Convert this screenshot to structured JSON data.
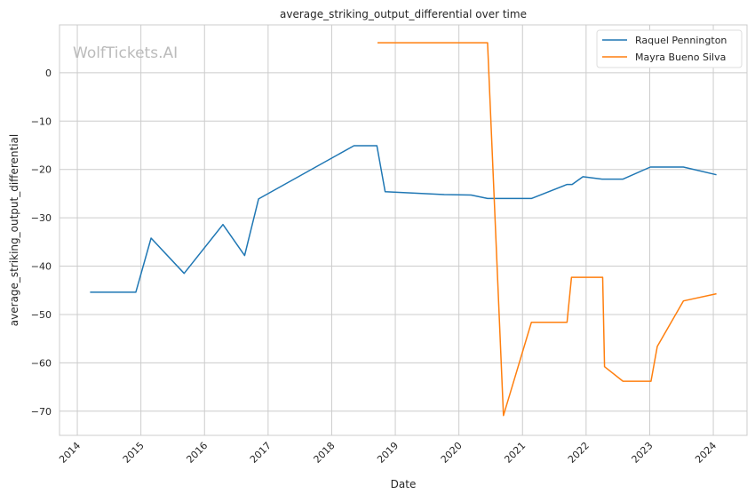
{
  "watermark": "WolfTickets.AI",
  "chart_data": {
    "type": "line",
    "title": "average_striking_output_differential over time",
    "xlabel": "Date",
    "ylabel": "average_striking_output_differential",
    "xlim": [
      2013.72,
      2024.53
    ],
    "ylim": [
      -75,
      9.9
    ],
    "xticks": [
      2014,
      2015,
      2016,
      2017,
      2018,
      2019,
      2020,
      2021,
      2022,
      2023,
      2024
    ],
    "yticks": [
      0,
      -10,
      -20,
      -30,
      -40,
      -50,
      -60,
      -70
    ],
    "grid": true,
    "legend_position": "top-right",
    "series": [
      {
        "name": "Raquel Pennington",
        "color": "#1f77b4",
        "x": [
          2014.2,
          2014.92,
          2015.16,
          2015.68,
          2016.29,
          2016.63,
          2016.85,
          2018.35,
          2018.71,
          2018.84,
          2019.77,
          2020.19,
          2020.45,
          2021.14,
          2021.7,
          2021.78,
          2021.95,
          2022.25,
          2022.58,
          2023.01,
          2023.53,
          2024.05
        ],
        "y": [
          -45.4,
          -45.4,
          -34.2,
          -41.5,
          -31.4,
          -37.8,
          -26.1,
          -15.1,
          -15.1,
          -24.6,
          -25.2,
          -25.3,
          -26.0,
          -26.0,
          -23.1,
          -23.1,
          -21.5,
          -22.0,
          -22.0,
          -19.5,
          -19.5,
          -21.1
        ]
      },
      {
        "name": "Mayra Bueno Silva",
        "color": "#ff7f0e",
        "x": [
          2018.72,
          2020.45,
          2020.7,
          2021.14,
          2021.7,
          2021.77,
          2022.26,
          2022.29,
          2022.58,
          2023.02,
          2023.12,
          2023.53,
          2024.05
        ],
        "y": [
          6.2,
          6.2,
          -70.9,
          -51.6,
          -51.6,
          -42.3,
          -42.3,
          -60.8,
          -63.8,
          -63.8,
          -56.6,
          -47.2,
          -45.7
        ]
      }
    ]
  }
}
